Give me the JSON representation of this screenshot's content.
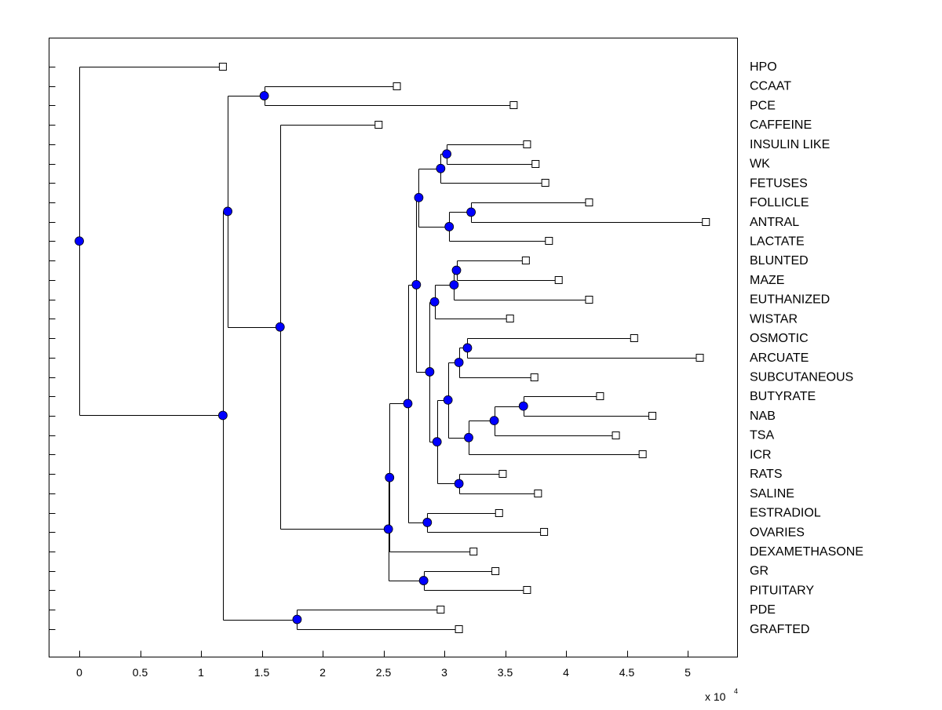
{
  "chart_data": {
    "type": "dendrogram",
    "title": "",
    "xlabel": "",
    "ylabel": "",
    "x_exponent_label": "x 10",
    "x_exponent_power": "4",
    "xlim": [
      -0.25,
      5.4
    ],
    "xticks": [
      0,
      0.5,
      1,
      1.5,
      2,
      2.5,
      3,
      3.5,
      4,
      4.5,
      5
    ],
    "xtick_labels": [
      "0",
      "0.5",
      "1",
      "1.5",
      "2",
      "2.5",
      "3",
      "3.5",
      "4",
      "4.5",
      "5"
    ],
    "grid": false,
    "colors": {
      "node": "#0000ff",
      "line": "#000000",
      "leaf": "#ffffff"
    },
    "tree": {
      "x": 0,
      "children": [
        {
          "label": "HPO",
          "x": 1.18
        },
        {
          "x": 1.18,
          "children": [
            {
              "x": 1.22,
              "children": [
                {
                  "x": 1.52,
                  "children": [
                    {
                      "label": "CCAAT",
                      "x": 2.61
                    },
                    {
                      "label": "PCE",
                      "x": 3.57
                    }
                  ]
                },
                {
                  "x": 1.65,
                  "children": [
                    {
                      "label": "CAFFEINE",
                      "x": 2.46
                    },
                    {
                      "x": 2.54,
                      "children": [
                        {
                          "x": 2.55,
                          "children": [
                            {
                              "x": 2.7,
                              "children": [
                                {
                                  "x": 2.77,
                                  "children": [
                                    {
                                      "x": 2.79,
                                      "children": [
                                        {
                                          "x": 2.97,
                                          "children": [
                                            {
                                              "x": 3.02,
                                              "children": [
                                                {
                                                  "label": "INSULIN LIKE",
                                                  "x": 3.68
                                                },
                                                {
                                                  "label": "WK",
                                                  "x": 3.75
                                                }
                                              ]
                                            },
                                            {
                                              "label": "FETUSES",
                                              "x": 3.83
                                            }
                                          ]
                                        },
                                        {
                                          "x": 3.04,
                                          "children": [
                                            {
                                              "x": 3.22,
                                              "children": [
                                                {
                                                  "label": "FOLLICLE",
                                                  "x": 4.19
                                                },
                                                {
                                                  "label": "ANTRAL",
                                                  "x": 5.15
                                                }
                                              ]
                                            },
                                            {
                                              "label": "LACTATE",
                                              "x": 3.86
                                            }
                                          ]
                                        }
                                      ]
                                    },
                                    {
                                      "x": 2.88,
                                      "children": [
                                        {
                                          "x": 2.92,
                                          "children": [
                                            {
                                              "x": 3.08,
                                              "children": [
                                                {
                                                  "x": 3.1,
                                                  "children": [
                                                    {
                                                      "label": "BLUNTED",
                                                      "x": 3.67
                                                    },
                                                    {
                                                      "label": "MAZE",
                                                      "x": 3.94
                                                    }
                                                  ]
                                                },
                                                {
                                                  "label": "EUTHANIZED",
                                                  "x": 4.19
                                                }
                                              ]
                                            },
                                            {
                                              "label": "WISTAR",
                                              "x": 3.54
                                            }
                                          ]
                                        },
                                        {
                                          "x": 2.94,
                                          "children": [
                                            {
                                              "x": 3.03,
                                              "children": [
                                                {
                                                  "x": 3.12,
                                                  "children": [
                                                    {
                                                      "x": 3.19,
                                                      "children": [
                                                        {
                                                          "label": "OSMOTIC",
                                                          "x": 4.56
                                                        },
                                                        {
                                                          "label": "ARCUATE",
                                                          "x": 5.1
                                                        }
                                                      ]
                                                    },
                                                    {
                                                      "label": "SUBCUTANEOUS",
                                                      "x": 3.74
                                                    }
                                                  ]
                                                },
                                                {
                                                  "x": 3.2,
                                                  "children": [
                                                    {
                                                      "x": 3.41,
                                                      "children": [
                                                        {
                                                          "x": 3.65,
                                                          "children": [
                                                            {
                                                              "label": "BUTYRATE",
                                                              "x": 4.28
                                                            },
                                                            {
                                                              "label": "NAB",
                                                              "x": 4.71
                                                            }
                                                          ]
                                                        },
                                                        {
                                                          "label": "TSA",
                                                          "x": 4.41
                                                        }
                                                      ]
                                                    },
                                                    {
                                                      "label": "ICR",
                                                      "x": 4.63
                                                    }
                                                  ]
                                                }
                                              ]
                                            },
                                            {
                                              "x": 3.12,
                                              "children": [
                                                {
                                                  "label": "RATS",
                                                  "x": 3.48
                                                },
                                                {
                                                  "label": "SALINE",
                                                  "x": 3.77
                                                }
                                              ]
                                            }
                                          ]
                                        }
                                      ]
                                    }
                                  ]
                                },
                                {
                                  "x": 2.86,
                                  "children": [
                                    {
                                      "label": "ESTRADIOL",
                                      "x": 3.45
                                    },
                                    {
                                      "label": "OVARIES",
                                      "x": 3.82
                                    }
                                  ]
                                }
                              ]
                            },
                            {
                              "label": "DEXAMETHASONE",
                              "x": 3.24
                            }
                          ]
                        },
                        {
                          "x": 2.83,
                          "children": [
                            {
                              "label": "GR",
                              "x": 3.42
                            },
                            {
                              "label": "PITUITARY",
                              "x": 3.68
                            }
                          ]
                        }
                      ]
                    }
                  ]
                }
              ]
            },
            {
              "x": 1.79,
              "children": [
                {
                  "label": "PDE",
                  "x": 2.97
                },
                {
                  "label": "GRAFTED",
                  "x": 3.12
                }
              ]
            }
          ]
        }
      ]
    }
  }
}
